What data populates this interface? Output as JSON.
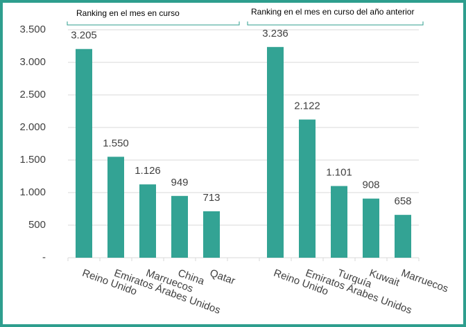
{
  "chart_data": {
    "type": "bar",
    "annotations": [
      "Ranking en el mes en curso",
      "Ranking en el mes en curso del año anterior"
    ],
    "categories": [
      "Reino Unido",
      "Emiratos Árabes Unidos",
      "Marruecos",
      "China",
      "Qatar",
      null,
      "Reino Unido",
      "Emiratos Árabes Unidos",
      "Turquía",
      "Kuwait",
      "Marruecos"
    ],
    "values": [
      3205,
      1550,
      1126,
      949,
      713,
      null,
      3236,
      2122,
      1101,
      908,
      658
    ],
    "value_labels": [
      "3.205",
      "1.550",
      "1.126",
      "949",
      "713",
      null,
      "3.236",
      "2.122",
      "1.101",
      "908",
      "658"
    ],
    "color": "#33a394",
    "ylim": [
      0,
      3500
    ],
    "yticks": [
      {
        "value": 0,
        "label": "-"
      },
      500,
      {
        "value": 1000,
        "label": "1.000"
      },
      {
        "value": 1500,
        "label": "1.500"
      },
      {
        "value": 2000,
        "label": "2.000"
      },
      {
        "value": 2500,
        "label": "2.500"
      },
      {
        "value": 3000,
        "label": "3.000"
      },
      {
        "value": 3500,
        "label": "3.500"
      }
    ],
    "grid": true
  }
}
